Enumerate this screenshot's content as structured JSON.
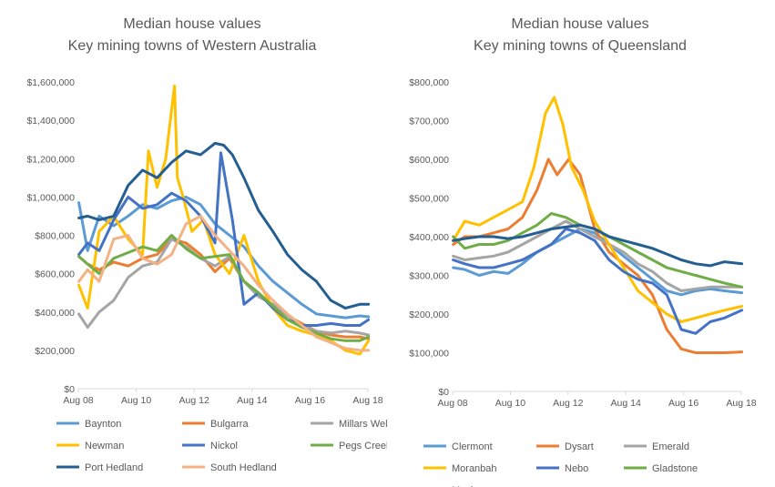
{
  "chart_data": [
    {
      "type": "line",
      "title": "Median house values",
      "subtitle": "Key mining towns of Western Australia",
      "xlabel": "",
      "ylabel": "",
      "x_ticks": [
        "Aug 08",
        "Aug 10",
        "Aug 12",
        "Aug 14",
        "Aug 16",
        "Aug 18"
      ],
      "xlim": [
        2008.58,
        2018.58
      ],
      "ylim": [
        0,
        1600000
      ],
      "y_ticks": [
        0,
        200000,
        400000,
        600000,
        800000,
        1000000,
        1200000,
        1400000,
        1600000
      ],
      "y_tick_labels": [
        "$0",
        "$200,000",
        "$400,000",
        "$600,000",
        "$800,000",
        "$1,000,000",
        "$1,200,000",
        "$1,400,000",
        "$1,600,000"
      ],
      "legend_position": "bottom",
      "series": [
        {
          "name": "Baynton",
          "color": "#5B9BD5",
          "x": [
            2008.6,
            2008.9,
            2009.3,
            2009.8,
            2010.3,
            2010.8,
            2011.3,
            2011.8,
            2012.3,
            2012.8,
            2013.3,
            2013.8,
            2014.3,
            2014.8,
            2015.3,
            2015.8,
            2016.3,
            2016.8,
            2017.3,
            2017.8,
            2018.3,
            2018.6
          ],
          "y": [
            970000,
            720000,
            900000,
            850000,
            900000,
            960000,
            940000,
            980000,
            1000000,
            960000,
            860000,
            800000,
            740000,
            640000,
            560000,
            500000,
            440000,
            390000,
            380000,
            370000,
            380000,
            375000
          ]
        },
        {
          "name": "Bulgarra",
          "color": "#ED7D31",
          "x": [
            2008.6,
            2008.9,
            2009.3,
            2009.8,
            2010.3,
            2010.8,
            2011.3,
            2011.8,
            2012.3,
            2012.8,
            2013.3,
            2013.8,
            2014.3,
            2014.8,
            2015.3,
            2015.8,
            2016.3,
            2016.8,
            2017.3,
            2017.8,
            2018.3,
            2018.6
          ],
          "y": [
            690000,
            650000,
            620000,
            660000,
            640000,
            680000,
            700000,
            780000,
            760000,
            700000,
            610000,
            680000,
            560000,
            500000,
            430000,
            380000,
            340000,
            300000,
            280000,
            270000,
            270000,
            260000
          ]
        },
        {
          "name": "Millars Well",
          "color": "#A5A5A5",
          "x": [
            2008.6,
            2008.9,
            2009.3,
            2009.8,
            2010.3,
            2010.8,
            2011.3,
            2011.8,
            2012.3,
            2012.8,
            2013.3,
            2013.8,
            2014.3,
            2014.8,
            2015.3,
            2015.8,
            2016.3,
            2016.8,
            2017.3,
            2017.8,
            2018.3,
            2018.6
          ],
          "y": [
            390000,
            320000,
            400000,
            460000,
            580000,
            640000,
            660000,
            780000,
            740000,
            680000,
            640000,
            690000,
            560000,
            480000,
            440000,
            380000,
            330000,
            300000,
            290000,
            300000,
            290000,
            280000
          ]
        },
        {
          "name": "Newman",
          "color": "#FFC000",
          "x": [
            2008.6,
            2008.9,
            2009.3,
            2009.8,
            2010.3,
            2010.8,
            2011.0,
            2011.3,
            2011.6,
            2011.9,
            2012.0,
            2012.2,
            2012.5,
            2012.9,
            2013.3,
            2013.8,
            2014.3,
            2014.8,
            2015.3,
            2015.8,
            2016.3,
            2016.8,
            2017.3,
            2017.8,
            2018.3,
            2018.6
          ],
          "y": [
            540000,
            420000,
            820000,
            900000,
            780000,
            700000,
            1240000,
            1050000,
            1200000,
            1580000,
            1100000,
            1000000,
            820000,
            880000,
            700000,
            600000,
            800000,
            560000,
            420000,
            330000,
            300000,
            280000,
            250000,
            200000,
            180000,
            250000
          ]
        },
        {
          "name": "Nickol",
          "color": "#4472C4",
          "x": [
            2008.6,
            2008.9,
            2009.3,
            2009.8,
            2010.3,
            2010.8,
            2011.3,
            2011.8,
            2012.3,
            2012.8,
            2013.3,
            2013.5,
            2013.9,
            2014.3,
            2014.8,
            2015.3,
            2015.8,
            2016.3,
            2016.8,
            2017.3,
            2017.8,
            2018.3,
            2018.6
          ],
          "y": [
            700000,
            760000,
            720000,
            880000,
            1000000,
            940000,
            960000,
            1020000,
            980000,
            900000,
            760000,
            1230000,
            880000,
            440000,
            500000,
            420000,
            360000,
            330000,
            330000,
            340000,
            330000,
            330000,
            360000
          ]
        },
        {
          "name": "Pegs Creek",
          "color": "#70AD47",
          "x": [
            2008.6,
            2008.9,
            2009.3,
            2009.8,
            2010.3,
            2010.8,
            2011.3,
            2011.8,
            2012.3,
            2012.8,
            2013.3,
            2013.8,
            2014.3,
            2014.8,
            2015.3,
            2015.8,
            2016.3,
            2016.8,
            2017.3,
            2017.8,
            2018.3,
            2018.6
          ],
          "y": [
            690000,
            650000,
            600000,
            680000,
            710000,
            740000,
            720000,
            800000,
            730000,
            680000,
            690000,
            700000,
            560000,
            500000,
            430000,
            360000,
            320000,
            290000,
            260000,
            250000,
            250000,
            270000
          ]
        },
        {
          "name": "Port Hedland",
          "color": "#255E91",
          "x": [
            2008.6,
            2008.9,
            2009.3,
            2009.8,
            2010.3,
            2010.8,
            2011.3,
            2011.8,
            2012.3,
            2012.8,
            2013.3,
            2013.6,
            2013.9,
            2014.3,
            2014.8,
            2015.3,
            2015.8,
            2016.3,
            2016.8,
            2017.3,
            2017.8,
            2018.3,
            2018.6
          ],
          "y": [
            890000,
            900000,
            880000,
            900000,
            1060000,
            1140000,
            1100000,
            1180000,
            1240000,
            1220000,
            1280000,
            1270000,
            1220000,
            1100000,
            930000,
            820000,
            700000,
            620000,
            560000,
            460000,
            420000,
            440000,
            440000
          ]
        },
        {
          "name": "South Hedland",
          "color": "#F4B183",
          "x": [
            2008.6,
            2008.9,
            2009.3,
            2009.8,
            2010.3,
            2010.8,
            2011.3,
            2011.8,
            2012.3,
            2012.8,
            2013.3,
            2013.8,
            2014.3,
            2014.8,
            2015.3,
            2015.8,
            2016.3,
            2016.8,
            2017.3,
            2017.8,
            2018.3,
            2018.6
          ],
          "y": [
            560000,
            620000,
            560000,
            780000,
            800000,
            680000,
            650000,
            700000,
            860000,
            900000,
            800000,
            720000,
            640000,
            540000,
            460000,
            390000,
            330000,
            270000,
            240000,
            210000,
            200000,
            200000
          ]
        }
      ]
    },
    {
      "type": "line",
      "title": "Median house values",
      "subtitle": "Key mining towns of Queensland",
      "xlabel": "",
      "ylabel": "",
      "x_ticks": [
        "Aug 08",
        "Aug 10",
        "Aug 12",
        "Aug 14",
        "Aug 16",
        "Aug 18"
      ],
      "xlim": [
        2008.58,
        2018.58
      ],
      "ylim": [
        0,
        800000
      ],
      "y_ticks": [
        0,
        100000,
        200000,
        300000,
        400000,
        500000,
        600000,
        700000,
        800000
      ],
      "y_tick_labels": [
        "$0",
        "$100,000",
        "$200,000",
        "$300,000",
        "$400,000",
        "$500,000",
        "$600,000",
        "$700,000",
        "$800,000"
      ],
      "legend_position": "bottom",
      "series": [
        {
          "name": "Clermont",
          "color": "#5B9BD5",
          "x": [
            2008.6,
            2009.0,
            2009.5,
            2010.0,
            2010.5,
            2011.0,
            2011.5,
            2012.0,
            2012.5,
            2013.0,
            2013.5,
            2014.0,
            2014.5,
            2015.0,
            2015.5,
            2016.0,
            2016.5,
            2017.0,
            2017.5,
            2018.0,
            2018.6
          ],
          "y": [
            320000,
            315000,
            300000,
            310000,
            305000,
            330000,
            360000,
            380000,
            400000,
            420000,
            410000,
            380000,
            350000,
            320000,
            290000,
            260000,
            250000,
            260000,
            265000,
            260000,
            255000
          ]
        },
        {
          "name": "Dysart",
          "color": "#ED7D31",
          "x": [
            2008.6,
            2009.0,
            2009.5,
            2010.0,
            2010.5,
            2011.0,
            2011.5,
            2011.9,
            2012.2,
            2012.6,
            2013.0,
            2013.5,
            2014.0,
            2014.5,
            2015.0,
            2015.5,
            2016.0,
            2016.5,
            2017.0,
            2017.5,
            2018.0,
            2018.6
          ],
          "y": [
            380000,
            400000,
            400000,
            410000,
            420000,
            450000,
            520000,
            600000,
            560000,
            600000,
            560000,
            420000,
            360000,
            330000,
            300000,
            250000,
            160000,
            110000,
            100000,
            100000,
            100000,
            102000
          ]
        },
        {
          "name": "Emerald",
          "color": "#A5A5A5",
          "x": [
            2008.6,
            2009.0,
            2009.5,
            2010.0,
            2010.5,
            2011.0,
            2011.5,
            2012.0,
            2012.5,
            2013.0,
            2013.5,
            2014.0,
            2014.5,
            2015.0,
            2015.5,
            2016.0,
            2016.5,
            2017.0,
            2017.5,
            2018.0,
            2018.6
          ],
          "y": [
            350000,
            340000,
            345000,
            350000,
            360000,
            380000,
            400000,
            420000,
            440000,
            420000,
            400000,
            380000,
            360000,
            330000,
            310000,
            280000,
            260000,
            265000,
            270000,
            270000,
            270000
          ]
        },
        {
          "name": "Moranbah",
          "color": "#FFC000",
          "x": [
            2008.6,
            2009.0,
            2009.5,
            2010.0,
            2010.5,
            2011.0,
            2011.4,
            2011.8,
            2012.1,
            2012.4,
            2012.7,
            2013.1,
            2013.5,
            2014.0,
            2014.5,
            2015.0,
            2015.5,
            2016.0,
            2016.5,
            2017.0,
            2017.5,
            2018.0,
            2018.6
          ],
          "y": [
            390000,
            440000,
            430000,
            450000,
            470000,
            490000,
            580000,
            720000,
            760000,
            690000,
            580000,
            520000,
            440000,
            380000,
            320000,
            260000,
            230000,
            200000,
            180000,
            190000,
            200000,
            210000,
            220000
          ]
        },
        {
          "name": "Nebo",
          "color": "#4472C4",
          "x": [
            2008.6,
            2009.0,
            2009.5,
            2010.0,
            2010.5,
            2011.0,
            2011.5,
            2012.0,
            2012.5,
            2013.0,
            2013.5,
            2014.0,
            2014.5,
            2015.0,
            2015.5,
            2016.0,
            2016.5,
            2017.0,
            2017.5,
            2018.0,
            2018.6
          ],
          "y": [
            340000,
            330000,
            320000,
            320000,
            330000,
            340000,
            360000,
            380000,
            420000,
            410000,
            390000,
            340000,
            310000,
            290000,
            280000,
            250000,
            160000,
            150000,
            180000,
            190000,
            210000
          ]
        },
        {
          "name": "Gladstone",
          "color": "#70AD47",
          "x": [
            2008.6,
            2009.0,
            2009.5,
            2010.0,
            2010.5,
            2011.0,
            2011.5,
            2012.0,
            2012.5,
            2013.0,
            2013.5,
            2014.0,
            2014.5,
            2015.0,
            2015.5,
            2016.0,
            2016.5,
            2017.0,
            2017.5,
            2018.0,
            2018.6
          ],
          "y": [
            400000,
            370000,
            380000,
            380000,
            390000,
            410000,
            430000,
            460000,
            450000,
            430000,
            420000,
            400000,
            380000,
            360000,
            340000,
            320000,
            310000,
            300000,
            290000,
            280000,
            270000
          ]
        },
        {
          "name": "Mackay",
          "color": "#255E91",
          "x": [
            2008.6,
            2009.0,
            2009.5,
            2010.0,
            2010.5,
            2011.0,
            2011.5,
            2012.0,
            2012.5,
            2013.0,
            2013.5,
            2014.0,
            2014.5,
            2015.0,
            2015.5,
            2016.0,
            2016.5,
            2017.0,
            2017.5,
            2018.0,
            2018.6
          ],
          "y": [
            390000,
            395000,
            400000,
            400000,
            395000,
            400000,
            410000,
            420000,
            425000,
            430000,
            420000,
            400000,
            390000,
            380000,
            370000,
            355000,
            340000,
            330000,
            325000,
            335000,
            330000
          ]
        }
      ]
    }
  ]
}
